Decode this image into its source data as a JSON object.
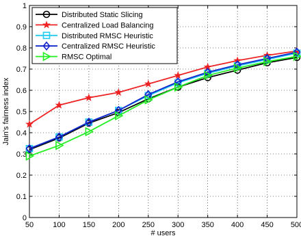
{
  "chart_data": {
    "type": "line",
    "title": "",
    "xlabel": "# users",
    "ylabel": "Jain's fairness index",
    "xlim": [
      50,
      500
    ],
    "ylim": [
      0,
      1
    ],
    "grid": true,
    "legend_position": "top-left",
    "x": [
      50,
      100,
      150,
      200,
      250,
      300,
      350,
      400,
      450,
      500
    ],
    "x_ticks": [
      "50",
      "100",
      "150",
      "200",
      "250",
      "300",
      "350",
      "400",
      "450",
      "500"
    ],
    "y_ticks": [
      "0",
      "0.1",
      "0.2",
      "0.3",
      "0.4",
      "0.5",
      "0.6",
      "0.7",
      "0.8",
      "0.9",
      "1"
    ],
    "series": [
      {
        "name": "Distributed Static Slicing",
        "color": "#000000",
        "marker": "circle",
        "values": [
          0.32,
          0.375,
          0.445,
          0.495,
          0.56,
          0.615,
          0.66,
          0.695,
          0.73,
          0.755
        ]
      },
      {
        "name": "Centralized Load Balancing",
        "color": "#ee2222",
        "marker": "star",
        "values": [
          0.44,
          0.53,
          0.565,
          0.59,
          0.63,
          0.67,
          0.71,
          0.74,
          0.765,
          0.785
        ]
      },
      {
        "name": "Distributed RMSC Heuristic",
        "color": "#22ccee",
        "marker": "square",
        "values": [
          0.325,
          0.38,
          0.45,
          0.505,
          0.575,
          0.635,
          0.68,
          0.715,
          0.745,
          0.775
        ]
      },
      {
        "name": "Centralized RMSC Heuristic",
        "color": "#1122cc",
        "marker": "diamond",
        "values": [
          0.325,
          0.38,
          0.45,
          0.505,
          0.58,
          0.64,
          0.685,
          0.72,
          0.75,
          0.78
        ]
      },
      {
        "name": "RMSC Optimal",
        "color": "#22ee22",
        "marker": "triangle-right",
        "values": [
          0.29,
          0.34,
          0.405,
          0.48,
          0.555,
          0.615,
          0.67,
          0.705,
          0.735,
          0.76
        ]
      }
    ]
  }
}
